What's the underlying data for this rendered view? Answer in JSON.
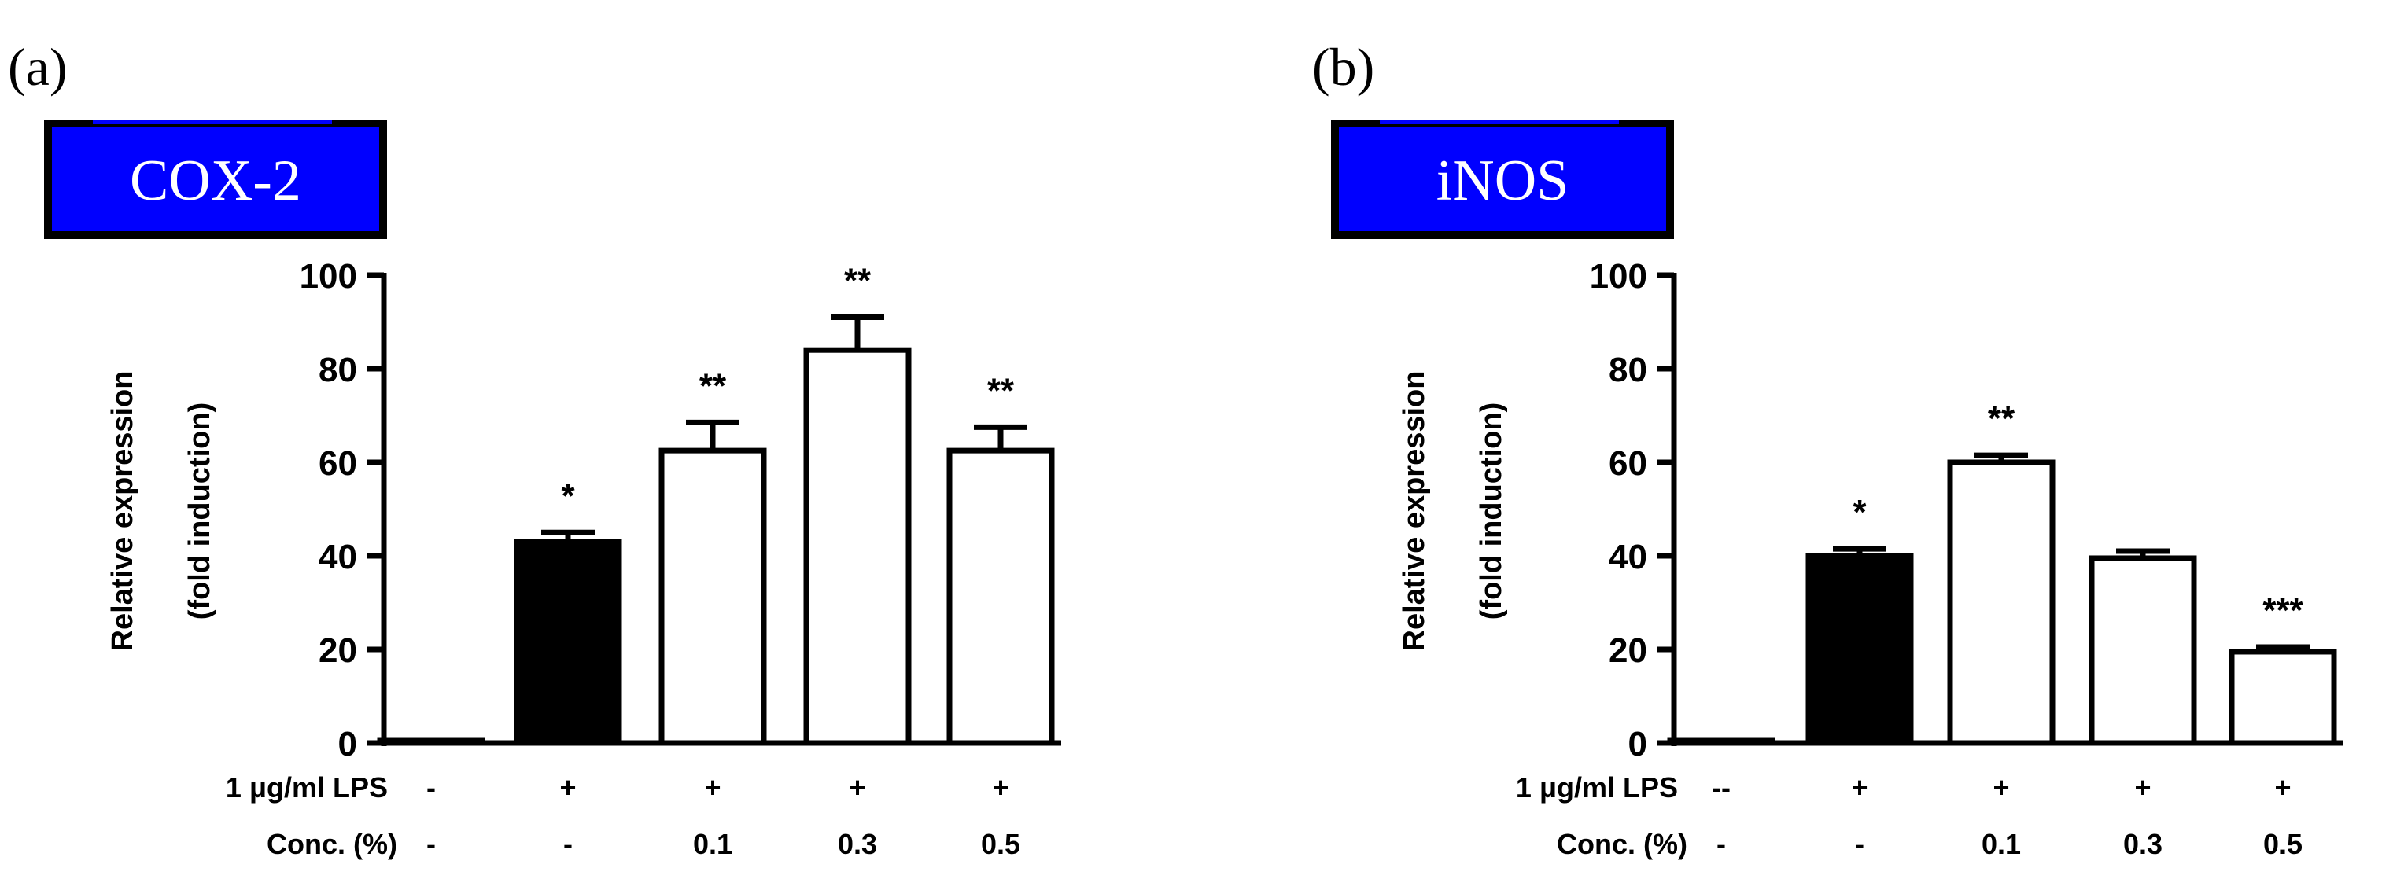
{
  "chart_data": [
    {
      "type": "bar",
      "panel_label": "(a)",
      "title": "COX-2",
      "title_bg_color": "#0000FF",
      "ylabel_line1": "Relative expression",
      "ylabel_line2": "(fold induction)",
      "ylim": [
        0,
        100
      ],
      "yticks": [
        0,
        20,
        40,
        60,
        80,
        100
      ],
      "row_labels": [
        "1 μg/ml LPS",
        "Conc. (%)"
      ],
      "lps": [
        "-",
        "+",
        "+",
        "+",
        "+"
      ],
      "conc": [
        "-",
        "-",
        "0.1",
        "0.3",
        "0.5"
      ],
      "values": [
        0.5,
        43,
        62.5,
        84,
        62.5
      ],
      "errors": [
        0,
        2,
        6,
        7,
        5
      ],
      "fills": [
        "#000000",
        "#000000",
        "#FFFFFF",
        "#FFFFFF",
        "#FFFFFF"
      ],
      "significance": [
        "",
        "*",
        "**",
        "**",
        "**"
      ]
    },
    {
      "type": "bar",
      "panel_label": "(b)",
      "title": "iNOS",
      "title_bg_color": "#0000FF",
      "ylabel_line1": "Relative expression",
      "ylabel_line2": "(fold induction)",
      "ylim": [
        0,
        100
      ],
      "yticks": [
        0,
        20,
        40,
        60,
        80,
        100
      ],
      "row_labels": [
        "1 μg/ml LPS",
        "Conc. (%)"
      ],
      "lps": [
        "--",
        "+",
        "+",
        "+",
        "+"
      ],
      "conc": [
        "-",
        "-",
        "0.1",
        "0.3",
        "0.5"
      ],
      "values": [
        0.5,
        40,
        60,
        39.5,
        19.5
      ],
      "errors": [
        0,
        1.5,
        1.5,
        1.5,
        1
      ],
      "fills": [
        "#000000",
        "#000000",
        "#FFFFFF",
        "#FFFFFF",
        "#FFFFFF"
      ],
      "significance": [
        "",
        "*",
        "**",
        "",
        "***"
      ]
    }
  ]
}
